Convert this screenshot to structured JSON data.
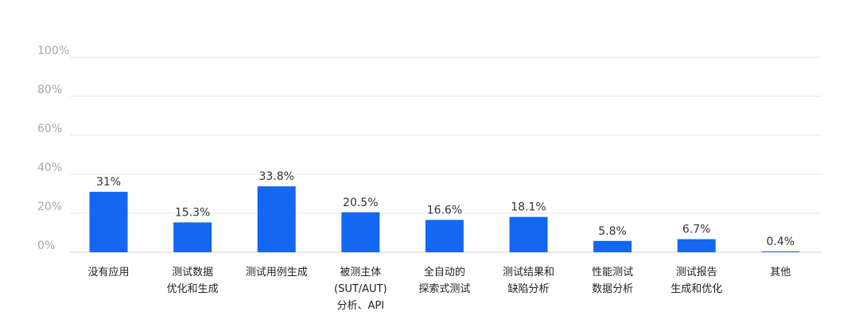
{
  "chart_data": {
    "type": "bar",
    "title": "",
    "xlabel": "",
    "ylabel": "",
    "ylim": [
      0,
      100
    ],
    "y_ticks": [
      "0%",
      "20%",
      "40%",
      "60%",
      "80%",
      "100%"
    ],
    "y_tick_values": [
      0,
      20,
      40,
      60,
      80,
      100
    ],
    "grid": true,
    "bar_color": "#1467f0",
    "categories": [
      [
        "没有应用"
      ],
      [
        "测试数据",
        "优化和生成"
      ],
      [
        "测试用例生成"
      ],
      [
        "被测主体",
        "(SUT/AUT)",
        "分析、API"
      ],
      [
        "全自动的",
        "探索式测试"
      ],
      [
        "测试结果和",
        "缺陷分析"
      ],
      [
        "性能测试",
        "数据分析"
      ],
      [
        "测试报告",
        "生成和优化"
      ],
      [
        "其他"
      ]
    ],
    "values": [
      31,
      15.3,
      33.8,
      20.5,
      16.6,
      18.1,
      5.8,
      6.7,
      0.4
    ],
    "value_labels": [
      "31%",
      "15.3%",
      "33.8%",
      "20.5%",
      "16.6%",
      "18.1%",
      "5.8%",
      "6.7%",
      "0.4%"
    ]
  }
}
